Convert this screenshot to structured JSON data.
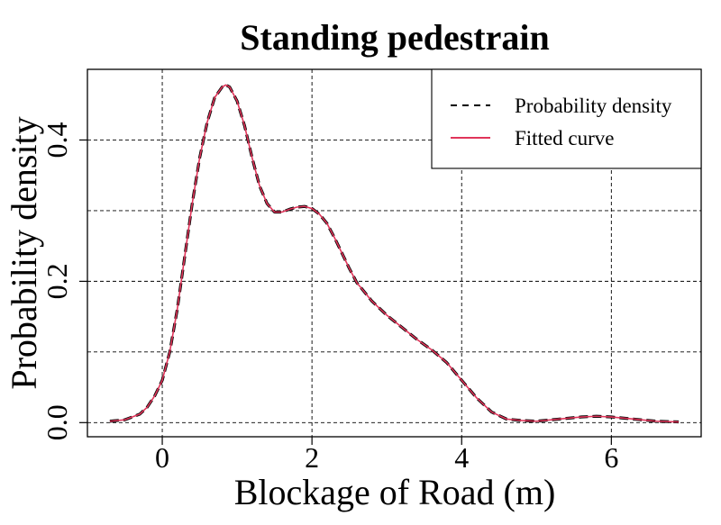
{
  "chart_data": {
    "type": "line",
    "title": "Standing pedestrain",
    "xlabel": "Blockage of Road (m)",
    "ylabel": "Probability density",
    "xlim": [
      -1.0,
      7.2
    ],
    "ylim": [
      -0.02,
      0.5
    ],
    "x_ticks": [
      0,
      2,
      4,
      6
    ],
    "x_tick_labels": [
      "0",
      "2",
      "4",
      "6"
    ],
    "y_ticks": [
      0.0,
      0.2,
      0.4
    ],
    "y_tick_labels": [
      "0.0",
      "0.2",
      "0.4"
    ],
    "grid": true,
    "grid_x": [
      0,
      2,
      4,
      6
    ],
    "grid_y": [
      0.0,
      0.1,
      0.2,
      0.3,
      0.4
    ],
    "legend_position": "top-right",
    "series": [
      {
        "name": "Probability density",
        "style": "dashed",
        "color": "#000000",
        "x": [
          -0.7,
          -0.5,
          -0.3,
          -0.2,
          -0.1,
          0.0,
          0.1,
          0.2,
          0.3,
          0.4,
          0.5,
          0.6,
          0.7,
          0.8,
          0.85,
          0.9,
          1.0,
          1.1,
          1.2,
          1.3,
          1.4,
          1.5,
          1.6,
          1.7,
          1.8,
          1.9,
          2.0,
          2.1,
          2.2,
          2.3,
          2.4,
          2.5,
          2.6,
          2.8,
          3.0,
          3.2,
          3.4,
          3.6,
          3.8,
          4.0,
          4.2,
          4.4,
          4.6,
          4.8,
          5.0,
          5.2,
          5.4,
          5.6,
          5.8,
          6.0,
          6.2,
          6.4,
          6.6,
          6.9
        ],
        "y": [
          0.002,
          0.004,
          0.012,
          0.022,
          0.038,
          0.06,
          0.1,
          0.16,
          0.235,
          0.31,
          0.375,
          0.425,
          0.46,
          0.475,
          0.478,
          0.475,
          0.455,
          0.42,
          0.375,
          0.335,
          0.31,
          0.298,
          0.298,
          0.302,
          0.305,
          0.306,
          0.303,
          0.295,
          0.282,
          0.262,
          0.24,
          0.218,
          0.198,
          0.172,
          0.152,
          0.135,
          0.118,
          0.103,
          0.085,
          0.06,
          0.035,
          0.015,
          0.005,
          0.003,
          0.002,
          0.004,
          0.006,
          0.008,
          0.009,
          0.008,
          0.006,
          0.004,
          0.002,
          0.001
        ]
      },
      {
        "name": "Fitted curve",
        "style": "solid",
        "color": "#e0355a",
        "x": [
          -0.7,
          -0.5,
          -0.3,
          -0.2,
          -0.1,
          0.0,
          0.1,
          0.2,
          0.3,
          0.4,
          0.5,
          0.6,
          0.7,
          0.8,
          0.85,
          0.9,
          1.0,
          1.1,
          1.2,
          1.3,
          1.4,
          1.5,
          1.6,
          1.7,
          1.8,
          1.9,
          2.0,
          2.1,
          2.2,
          2.3,
          2.4,
          2.5,
          2.6,
          2.8,
          3.0,
          3.2,
          3.4,
          3.6,
          3.8,
          4.0,
          4.2,
          4.4,
          4.6,
          4.8,
          5.0,
          5.2,
          5.4,
          5.6,
          5.8,
          6.0,
          6.2,
          6.4,
          6.6,
          6.9
        ],
        "y": [
          0.002,
          0.004,
          0.012,
          0.022,
          0.038,
          0.06,
          0.1,
          0.16,
          0.235,
          0.31,
          0.375,
          0.425,
          0.46,
          0.475,
          0.478,
          0.475,
          0.455,
          0.42,
          0.375,
          0.335,
          0.31,
          0.298,
          0.298,
          0.302,
          0.305,
          0.306,
          0.303,
          0.295,
          0.282,
          0.262,
          0.24,
          0.218,
          0.198,
          0.172,
          0.152,
          0.135,
          0.118,
          0.103,
          0.085,
          0.06,
          0.035,
          0.015,
          0.005,
          0.003,
          0.002,
          0.004,
          0.006,
          0.008,
          0.009,
          0.008,
          0.006,
          0.004,
          0.002,
          0.001
        ]
      }
    ]
  }
}
